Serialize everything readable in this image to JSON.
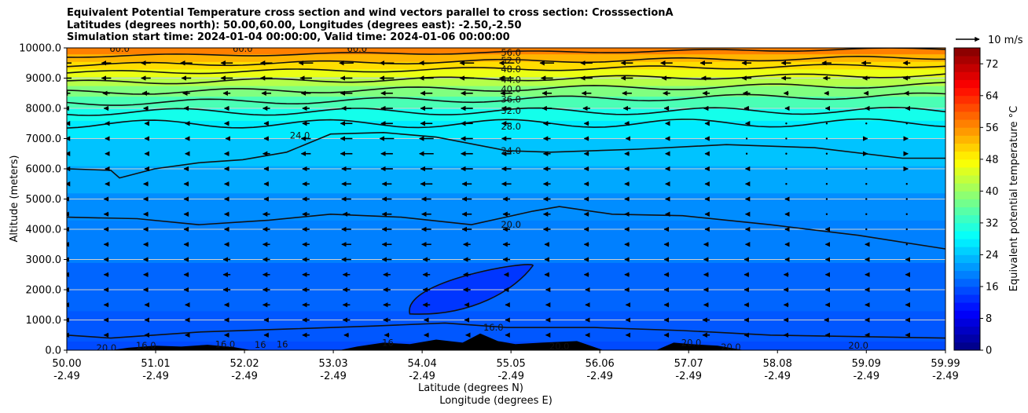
{
  "chart_data": {
    "type": "heatmap",
    "title_lines": [
      "Equivalent Potential Temperature cross section and wind vectors parallel to cross section: CrosssectionA",
      "Latitudes (degrees north): 50.00,60.00, Longitudes (degrees east): -2.50,-2.50",
      "Simulation start time: 2024-01-04 00:00:00, Valid time: 2024-01-06 00:00:00"
    ],
    "ylabel": "Altitude (meters)",
    "xlabel_lines": [
      "Latitude (degrees N)",
      "Longitude (degrees E)"
    ],
    "ylim": [
      0,
      10000
    ],
    "xlim": [
      50.0,
      59.99
    ],
    "y_ticks": [
      "0.0",
      "1000.0",
      "2000.0",
      "3000.0",
      "4000.0",
      "5000.0",
      "6000.0",
      "7000.0",
      "8000.0",
      "9000.0",
      "10000.0"
    ],
    "y_tick_values": [
      0,
      1000,
      2000,
      3000,
      4000,
      5000,
      6000,
      7000,
      8000,
      9000,
      10000
    ],
    "x_ticks": [
      {
        "lat": "50.00",
        "lon": "-2.49",
        "value": 50.0
      },
      {
        "lat": "51.01",
        "lon": "-2.49",
        "value": 51.01
      },
      {
        "lat": "52.02",
        "lon": "-2.49",
        "value": 52.02
      },
      {
        "lat": "53.03",
        "lon": "-2.49",
        "value": 53.03
      },
      {
        "lat": "54.04",
        "lon": "-2.49",
        "value": 54.04
      },
      {
        "lat": "55.05",
        "lon": "-2.49",
        "value": 55.05
      },
      {
        "lat": "56.06",
        "lon": "-2.49",
        "value": 56.06
      },
      {
        "lat": "57.07",
        "lon": "-2.49",
        "value": 57.07
      },
      {
        "lat": "58.08",
        "lon": "-2.49",
        "value": 58.08
      },
      {
        "lat": "59.09",
        "lon": "-2.49",
        "value": 59.09
      },
      {
        "lat": "59.99",
        "lon": "-2.49",
        "value": 59.99
      }
    ],
    "grid": "horizontal",
    "colorbar": {
      "label": "Equivalent potential temperature °C",
      "ticks": [
        "0",
        "8",
        "16",
        "24",
        "32",
        "40",
        "48",
        "56",
        "64",
        "72"
      ],
      "tick_values": [
        0,
        8,
        16,
        24,
        32,
        40,
        48,
        56,
        64,
        72
      ],
      "range": [
        0,
        76
      ],
      "colormap": "jet"
    },
    "quiver_key": {
      "label": "10 m/s",
      "value_ms": 10
    },
    "contour_labels": [
      {
        "text": "56.0",
        "lat": 55.05,
        "alt": 9850
      },
      {
        "text": "52.0",
        "lat": 55.05,
        "alt": 9580
      },
      {
        "text": "48.0",
        "lat": 55.05,
        "alt": 9300
      },
      {
        "text": "44.0",
        "lat": 55.05,
        "alt": 8950
      },
      {
        "text": "40.0",
        "lat": 55.05,
        "alt": 8640
      },
      {
        "text": "36.0",
        "lat": 55.05,
        "alt": 8300
      },
      {
        "text": "32.0",
        "lat": 55.05,
        "alt": 7920
      },
      {
        "text": "28.0",
        "lat": 55.05,
        "alt": 7400
      },
      {
        "text": "24.0",
        "lat": 55.05,
        "alt": 6600
      },
      {
        "text": "24.0",
        "lat": 52.65,
        "alt": 7100
      },
      {
        "text": "20.0",
        "lat": 55.05,
        "alt": 4150
      },
      {
        "text": "16.0",
        "lat": 54.85,
        "alt": 750
      },
      {
        "text": "60.0",
        "lat": 50.6,
        "alt": 9980
      },
      {
        "text": "60.0",
        "lat": 52.0,
        "alt": 9980
      },
      {
        "text": "60.0",
        "lat": 53.3,
        "alt": 9980
      },
      {
        "text": "20.0",
        "lat": 50.45,
        "alt": 80
      },
      {
        "text": "16.0",
        "lat": 50.9,
        "alt": 150
      },
      {
        "text": "16.0",
        "lat": 51.8,
        "alt": 200
      },
      {
        "text": "16",
        "lat": 52.2,
        "alt": 180
      },
      {
        "text": "16",
        "lat": 52.45,
        "alt": 200
      },
      {
        "text": "16",
        "lat": 53.65,
        "alt": 250
      },
      {
        "text": "20.0",
        "lat": 55.6,
        "alt": 130
      },
      {
        "text": "20.0",
        "lat": 57.1,
        "alt": 250
      },
      {
        "text": "20.0",
        "lat": 57.55,
        "alt": 100
      },
      {
        "text": "20.0",
        "lat": 59.0,
        "alt": 150
      }
    ],
    "wind_ms": {
      "levels_alt": [
        500,
        1000,
        1500,
        2000,
        2500,
        3000,
        3500,
        4000,
        4500,
        5000,
        5500,
        6000,
        6500,
        7000,
        7500,
        8000,
        8500,
        9000,
        9500
      ],
      "columns_lat": [
        50.0,
        50.45,
        50.9,
        51.36,
        51.82,
        52.27,
        52.72,
        53.18,
        53.64,
        54.09,
        54.55,
        55.0,
        55.46,
        55.91,
        56.37,
        56.82,
        57.27,
        57.73,
        58.18,
        58.64,
        59.09,
        59.55,
        60.0
      ],
      "u_component_by_level": [
        [
          -2,
          -2,
          -1,
          -1,
          -2,
          -2,
          -3,
          -2,
          -2,
          -2,
          -1,
          -1,
          -1,
          -1,
          -1,
          -2,
          -3,
          -2,
          -2,
          -1,
          -1,
          -1,
          -2
        ],
        [
          -2,
          -2,
          -1,
          -1,
          -2,
          -2,
          -3,
          -3,
          -3,
          -2,
          -2,
          -1,
          -1,
          -1,
          -1,
          -2,
          -3,
          -2,
          -2,
          -2,
          -1,
          -1,
          -2
        ],
        [
          -2,
          -2,
          -1,
          -1,
          -2,
          -3,
          -3,
          -3,
          -3,
          -3,
          -2,
          -1,
          -1,
          -1,
          -1,
          -2,
          -2,
          -2,
          -2,
          -1,
          -1,
          -1,
          -1
        ],
        [
          -2,
          -2,
          -2,
          -2,
          -3,
          -3,
          -3,
          -3,
          -3,
          -3,
          -3,
          -2,
          -1,
          -1,
          -2,
          -2,
          -2,
          -2,
          -2,
          -1,
          -1,
          -1,
          -1
        ],
        [
          -2,
          -2,
          -2,
          -2,
          -3,
          -3,
          -3,
          -3,
          -3,
          -3,
          -3,
          -2,
          -2,
          -2,
          -2,
          -2,
          -2,
          -2,
          -2,
          -1,
          -1,
          -1,
          -1
        ],
        [
          -2,
          -2,
          -2,
          -2,
          -3,
          -3,
          -3,
          -4,
          -4,
          -3,
          -3,
          -3,
          -2,
          -2,
          -2,
          -2,
          -2,
          -2,
          -1,
          -1,
          -1,
          -1,
          -1
        ],
        [
          -2,
          -2,
          -2,
          -2,
          -2,
          -3,
          -3,
          -4,
          -4,
          -4,
          -3,
          -3,
          -2,
          -2,
          -2,
          -2,
          -2,
          -1,
          -1,
          -1,
          -1,
          0,
          0
        ],
        [
          -2,
          -2,
          -2,
          -2,
          -2,
          -3,
          -3,
          -4,
          -4,
          -4,
          -4,
          -3,
          -3,
          -2,
          -2,
          -2,
          -1,
          -1,
          -1,
          -1,
          0,
          0,
          0
        ],
        [
          -2,
          -2,
          -2,
          -2,
          -2,
          -3,
          -3,
          -3,
          -4,
          -4,
          -4,
          -3,
          -3,
          -2,
          -2,
          -1,
          -1,
          -1,
          -1,
          0,
          0,
          0,
          0
        ],
        [
          -2,
          -2,
          -2,
          -2,
          -2,
          -2,
          -3,
          -4,
          -4,
          -4,
          -4,
          -3,
          -3,
          -2,
          -2,
          -1,
          -1,
          -1,
          -1,
          0,
          0,
          0,
          0
        ],
        [
          -1,
          -1,
          -2,
          -2,
          -2,
          -2,
          -3,
          -4,
          -4,
          -5,
          -4,
          -4,
          -3,
          -2,
          -2,
          -1,
          -1,
          -1,
          0,
          0,
          0,
          0,
          0
        ],
        [
          -1,
          -1,
          -1,
          -2,
          -2,
          -2,
          -3,
          -4,
          -5,
          -5,
          -5,
          -4,
          -3,
          -2,
          -2,
          -1,
          -1,
          -1,
          0,
          0,
          0,
          1,
          1
        ],
        [
          -1,
          -1,
          -1,
          -1,
          -2,
          -3,
          -4,
          -5,
          -5,
          -6,
          -5,
          -4,
          -3,
          -2,
          -2,
          -1,
          -1,
          0,
          0,
          0,
          1,
          1,
          1
        ],
        [
          -1,
          -1,
          -1,
          -1,
          -1,
          -2,
          -4,
          -5,
          -6,
          -6,
          -5,
          -4,
          -3,
          -2,
          -1,
          -1,
          -1,
          0,
          0,
          0,
          1,
          1,
          1
        ],
        [
          -1,
          -1,
          -1,
          -1,
          -2,
          -2,
          -3,
          -5,
          -5,
          -5,
          -5,
          -4,
          -3,
          -2,
          -2,
          -1,
          -1,
          -1,
          0,
          0,
          0,
          0,
          0
        ],
        [
          -2,
          -2,
          -2,
          -2,
          -2,
          -3,
          -3,
          -4,
          -5,
          -5,
          -5,
          -4,
          -4,
          -3,
          -3,
          -2,
          -2,
          -2,
          -1,
          -1,
          -1,
          -1,
          -1
        ],
        [
          -3,
          -3,
          -3,
          -3,
          -3,
          -4,
          -4,
          -5,
          -5,
          -5,
          -5,
          -5,
          -4,
          -4,
          -4,
          -3,
          -3,
          -3,
          -2,
          -2,
          -2,
          -2,
          -2
        ],
        [
          -4,
          -4,
          -4,
          -4,
          -5,
          -5,
          -5,
          -5,
          -6,
          -6,
          -6,
          -6,
          -5,
          -5,
          -5,
          -4,
          -4,
          -4,
          -4,
          -3,
          -3,
          -3,
          -3
        ],
        [
          -4,
          -4,
          -4,
          -5,
          -5,
          -5,
          -6,
          -6,
          -6,
          -6,
          -6,
          -6,
          -6,
          -5,
          -5,
          -5,
          -5,
          -4,
          -4,
          -4,
          -4,
          -3,
          -3
        ]
      ]
    }
  }
}
